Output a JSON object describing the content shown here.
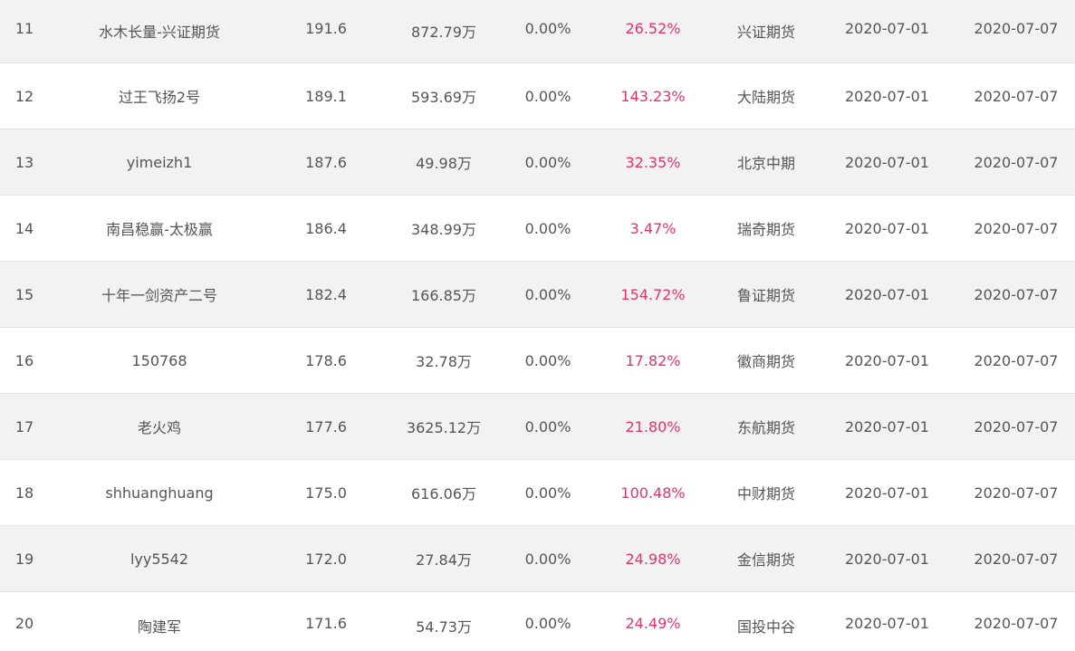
{
  "rows": [
    {
      "rank": "11",
      "name": "水木长量-兴证期货",
      "score": "191.6",
      "amount": "872.79万",
      "rate": "0.00%",
      "return": "26.52%",
      "broker": "兴证期货",
      "date_start": "2020-07-01",
      "date_end": "2020-07-07"
    },
    {
      "rank": "12",
      "name": "过王飞扬2号",
      "score": "189.1",
      "amount": "593.69万",
      "rate": "0.00%",
      "return": "143.23%",
      "broker": "大陆期货",
      "date_start": "2020-07-01",
      "date_end": "2020-07-07"
    },
    {
      "rank": "13",
      "name": "yimeizh1",
      "score": "187.6",
      "amount": "49.98万",
      "rate": "0.00%",
      "return": "32.35%",
      "broker": "北京中期",
      "date_start": "2020-07-01",
      "date_end": "2020-07-07"
    },
    {
      "rank": "14",
      "name": "南昌稳赢-太极赢",
      "score": "186.4",
      "amount": "348.99万",
      "rate": "0.00%",
      "return": "3.47%",
      "broker": "瑞奇期货",
      "date_start": "2020-07-01",
      "date_end": "2020-07-07"
    },
    {
      "rank": "15",
      "name": "十年一剑资产二号",
      "score": "182.4",
      "amount": "166.85万",
      "rate": "0.00%",
      "return": "154.72%",
      "broker": "鲁证期货",
      "date_start": "2020-07-01",
      "date_end": "2020-07-07"
    },
    {
      "rank": "16",
      "name": "150768",
      "score": "178.6",
      "amount": "32.78万",
      "rate": "0.00%",
      "return": "17.82%",
      "broker": "徽商期货",
      "date_start": "2020-07-01",
      "date_end": "2020-07-07"
    },
    {
      "rank": "17",
      "name": "老火鸡",
      "score": "177.6",
      "amount": "3625.12万",
      "rate": "0.00%",
      "return": "21.80%",
      "broker": "东航期货",
      "date_start": "2020-07-01",
      "date_end": "2020-07-07"
    },
    {
      "rank": "18",
      "name": "shhuanghuang",
      "score": "175.0",
      "amount": "616.06万",
      "rate": "0.00%",
      "return": "100.48%",
      "broker": "中财期货",
      "date_start": "2020-07-01",
      "date_end": "2020-07-07"
    },
    {
      "rank": "19",
      "name": "lyy5542",
      "score": "172.0",
      "amount": "27.84万",
      "rate": "0.00%",
      "return": "24.98%",
      "broker": "金信期货",
      "date_start": "2020-07-01",
      "date_end": "2020-07-07"
    },
    {
      "rank": "20",
      "name": "陶建军",
      "score": "171.6",
      "amount": "54.73万",
      "rate": "0.00%",
      "return": "24.49%",
      "broker": "国投中谷",
      "date_start": "2020-07-01",
      "date_end": "2020-07-07"
    }
  ],
  "colors": {
    "return_text": "#e3336b",
    "text": "#555555",
    "stripe": "#f2f2f2"
  }
}
